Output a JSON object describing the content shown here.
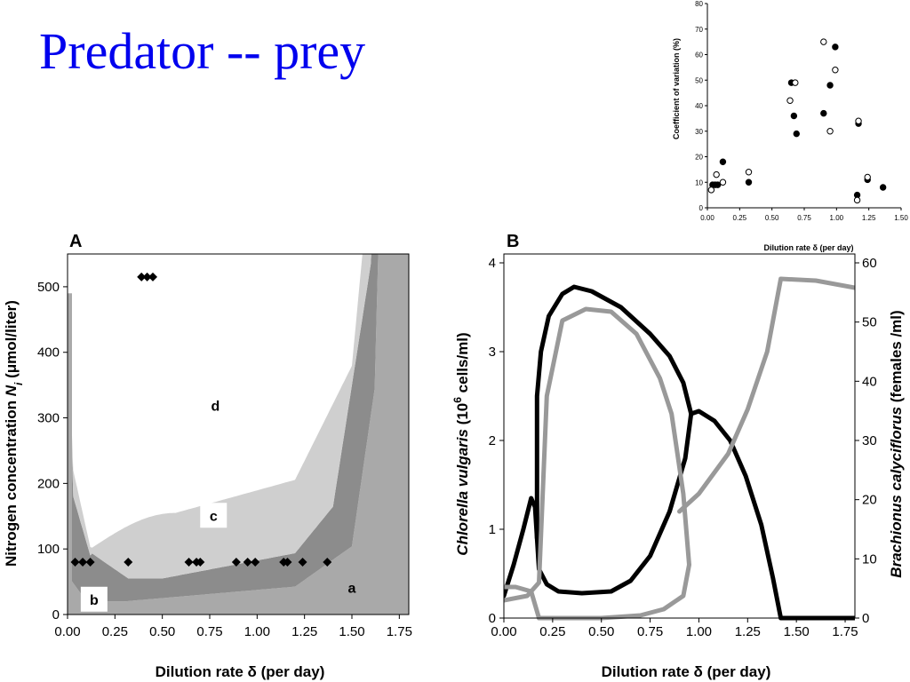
{
  "slide": {
    "title": "Predator -- prey"
  },
  "chart_data": [
    {
      "id": "cv",
      "type": "scatter",
      "xlabel": "Dilution rate δ (per day)",
      "ylabel": "Coefficient of variation (%)",
      "xlim": [
        0,
        1.5
      ],
      "ylim": [
        0,
        80
      ],
      "x_ticks": [
        "0.00",
        "0.25",
        "0.50",
        "0.75",
        "1.00",
        "1.25",
        "1.50"
      ],
      "y_ticks": [
        "0",
        "10",
        "20",
        "30",
        "40",
        "50",
        "60",
        "70",
        "80"
      ],
      "series": [
        {
          "marker": "filled",
          "points": [
            [
              0.04,
              9
            ],
            [
              0.06,
              9
            ],
            [
              0.08,
              9
            ],
            [
              0.12,
              18
            ],
            [
              0.32,
              10
            ],
            [
              0.65,
              49
            ],
            [
              0.67,
              36
            ],
            [
              0.69,
              29
            ],
            [
              0.9,
              37
            ],
            [
              0.95,
              48
            ],
            [
              0.99,
              63
            ],
            [
              1.17,
              33
            ],
            [
              1.16,
              5
            ],
            [
              1.24,
              11
            ],
            [
              1.36,
              8
            ]
          ]
        },
        {
          "marker": "open",
          "points": [
            [
              0.03,
              7
            ],
            [
              0.07,
              13
            ],
            [
              0.12,
              10
            ],
            [
              0.32,
              14
            ],
            [
              0.64,
              42
            ],
            [
              0.68,
              49
            ],
            [
              0.9,
              65
            ],
            [
              0.95,
              30
            ],
            [
              0.99,
              54
            ],
            [
              1.17,
              34
            ],
            [
              1.16,
              3
            ],
            [
              1.24,
              12
            ]
          ]
        }
      ]
    },
    {
      "id": "a",
      "type": "area",
      "panel_label": "A",
      "xlabel": "Dilution rate δ (per day)",
      "ylabel_prefix": "Nitrogen concentration ",
      "ylabel_var": "N",
      "ylabel_sub": "i",
      "ylabel_unit": " (μmol/liter)",
      "xlim": [
        0,
        1.8
      ],
      "ylim": [
        0,
        550
      ],
      "x_ticks": [
        "0.00",
        "0.25",
        "0.50",
        "0.75",
        "1.00",
        "1.25",
        "1.50",
        "1.75"
      ],
      "y_ticks": [
        "0",
        "100",
        "200",
        "300",
        "400",
        "500"
      ],
      "region_labels": {
        "a": {
          "text": "a",
          "x": 1.5,
          "y": 40
        },
        "b": {
          "text": "b",
          "x": 0.14,
          "y": 22
        },
        "c": {
          "text": "c",
          "x": 0.77,
          "y": 150
        },
        "d": {
          "text": "d",
          "x": 0.78,
          "y": 318
        }
      },
      "experimental_points": [
        [
          0.04,
          80
        ],
        [
          0.08,
          80
        ],
        [
          0.12,
          80
        ],
        [
          0.32,
          80
        ],
        [
          0.64,
          80
        ],
        [
          0.68,
          80
        ],
        [
          0.7,
          80
        ],
        [
          0.89,
          80
        ],
        [
          0.95,
          80
        ],
        [
          0.99,
          80
        ],
        [
          1.14,
          80
        ],
        [
          1.16,
          80
        ],
        [
          1.24,
          80
        ],
        [
          1.37,
          80
        ],
        [
          0.39,
          515
        ],
        [
          0.42,
          515
        ],
        [
          0.45,
          515
        ]
      ],
      "region_colors": {
        "white": "#ffffff",
        "light": "#cfcfcf",
        "mid": "#a9a9a9",
        "dark": "#8c8c8c"
      }
    },
    {
      "id": "b",
      "type": "line",
      "panel_label": "B",
      "xlabel": "Dilution rate δ (per day)",
      "ylabel_left_species": "Chlorella vulgaris",
      "ylabel_left_unit_pre": " (10",
      "ylabel_left_unit_sup": "6",
      "ylabel_left_unit_post": " cells/ml)",
      "ylabel_right_species": "Brachionus calyciflorus",
      "ylabel_right_unit": " (females /ml)",
      "xlim": [
        0,
        1.8
      ],
      "ylim_left": [
        0,
        4.1
      ],
      "ylim_right": [
        0,
        61.5
      ],
      "x_ticks": [
        "0.00",
        "0.25",
        "0.50",
        "0.75",
        "1.00",
        "1.25",
        "1.50",
        "1.75"
      ],
      "y_ticks_left": [
        "0",
        "1",
        "2",
        "3",
        "4"
      ],
      "y_ticks_right": [
        "0",
        "10",
        "20",
        "30",
        "40",
        "50",
        "60"
      ],
      "curves": [
        {
          "color": "#000000",
          "width": 5,
          "points": [
            [
              0,
              0.25
            ],
            [
              0.05,
              0.6
            ],
            [
              0.1,
              1.0
            ],
            [
              0.14,
              1.35
            ],
            [
              0.16,
              1.25
            ],
            [
              0.17,
              0.9
            ]
          ]
        },
        {
          "color": "#000000",
          "width": 5,
          "points": [
            [
              0.17,
              0.9
            ],
            [
              0.17,
              2.5
            ],
            [
              0.19,
              3.0
            ],
            [
              0.23,
              3.4
            ],
            [
              0.3,
              3.65
            ],
            [
              0.36,
              3.73
            ],
            [
              0.45,
              3.68
            ],
            [
              0.6,
              3.5
            ],
            [
              0.75,
              3.2
            ],
            [
              0.85,
              2.95
            ],
            [
              0.92,
              2.65
            ],
            [
              0.96,
              2.3
            ],
            [
              0.93,
              1.8
            ],
            [
              0.85,
              1.2
            ],
            [
              0.75,
              0.7
            ],
            [
              0.65,
              0.42
            ],
            [
              0.55,
              0.3
            ],
            [
              0.4,
              0.28
            ],
            [
              0.28,
              0.3
            ],
            [
              0.22,
              0.38
            ],
            [
              0.18,
              0.55
            ],
            [
              0.17,
              0.9
            ]
          ]
        },
        {
          "color": "#000000",
          "width": 5,
          "points": [
            [
              0.96,
              2.3
            ],
            [
              1.0,
              2.33
            ],
            [
              1.08,
              2.22
            ],
            [
              1.16,
              2.0
            ],
            [
              1.24,
              1.6
            ],
            [
              1.32,
              1.05
            ],
            [
              1.38,
              0.45
            ],
            [
              1.42,
              0.0
            ],
            [
              1.8,
              0.0
            ]
          ]
        },
        {
          "color": "#999999",
          "width": 5,
          "points": [
            [
              0.0,
              0.2
            ],
            [
              0.12,
              0.25
            ],
            [
              0.18,
              0.4
            ],
            [
              0.22,
              2.5
            ],
            [
              0.3,
              3.35
            ],
            [
              0.42,
              3.48
            ],
            [
              0.55,
              3.45
            ],
            [
              0.68,
              3.2
            ],
            [
              0.8,
              2.7
            ],
            [
              0.86,
              2.3
            ],
            [
              0.92,
              1.4
            ],
            [
              0.95,
              0.6
            ],
            [
              0.92,
              0.25
            ],
            [
              0.82,
              0.1
            ],
            [
              0.7,
              0.03
            ],
            [
              0.5,
              0.0
            ],
            [
              0.25,
              0.0
            ],
            [
              0.18,
              0.0
            ]
          ]
        },
        {
          "color": "#999999",
          "width": 5,
          "points": [
            [
              0.0,
              0.35
            ],
            [
              0.06,
              0.35
            ],
            [
              0.14,
              0.3
            ],
            [
              0.18,
              0.0
            ]
          ]
        },
        {
          "color": "#999999",
          "width": 5,
          "points": [
            [
              0.9,
              1.2
            ],
            [
              1.0,
              1.4
            ],
            [
              1.15,
              1.85
            ],
            [
              1.25,
              2.35
            ],
            [
              1.35,
              3.0
            ],
            [
              1.42,
              3.82
            ],
            [
              1.6,
              3.8
            ],
            [
              1.8,
              3.72
            ]
          ]
        }
      ]
    }
  ]
}
